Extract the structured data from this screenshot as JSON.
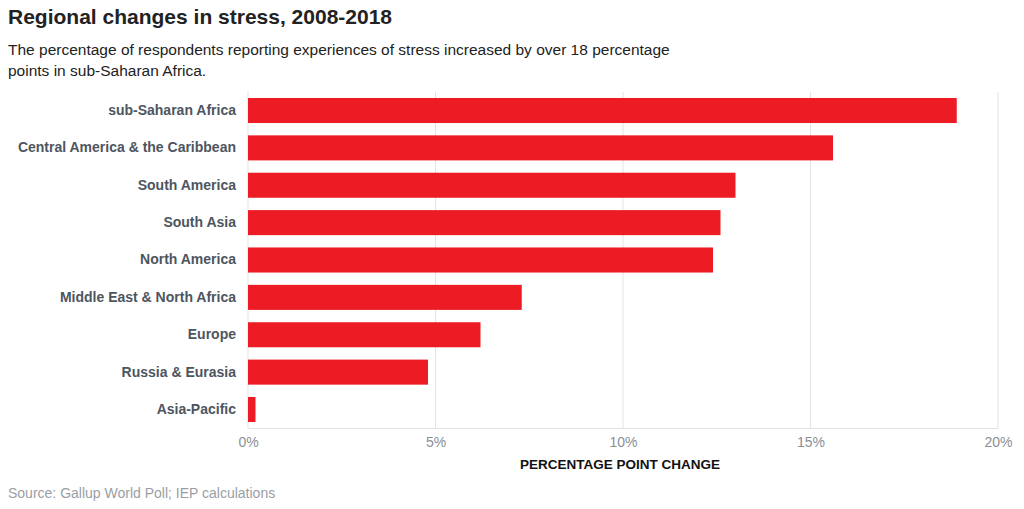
{
  "chart_data": {
    "type": "bar",
    "orientation": "horizontal",
    "title": "Regional changes in stress, 2008-2018",
    "subtitle": [
      "The percentage of respondents reporting experiences of stress increased by over 18 percentage",
      "points in sub-Saharan Africa."
    ],
    "source": "Source: Gallup World Poll; IEP calculations",
    "xlabel": "PERCENTAGE POINT CHANGE",
    "categories": [
      "sub-Saharan Africa",
      "Central America & the Caribbean",
      "South America",
      "South Asia",
      "North America",
      "Middle East & North Africa",
      "Europe",
      "Russia & Eurasia",
      "Asia-Pacific"
    ],
    "values": [
      18.9,
      15.6,
      13.0,
      12.6,
      12.4,
      7.3,
      6.2,
      4.8,
      0.2
    ],
    "color": "#ed1c24",
    "xlim": [
      0,
      20
    ],
    "xticks": [
      {
        "value": 0,
        "label": "0%"
      },
      {
        "value": 5,
        "label": "5%"
      },
      {
        "value": 10,
        "label": "10%"
      },
      {
        "value": 15,
        "label": "15%"
      },
      {
        "value": 20,
        "label": "20%"
      }
    ],
    "grid": true
  }
}
